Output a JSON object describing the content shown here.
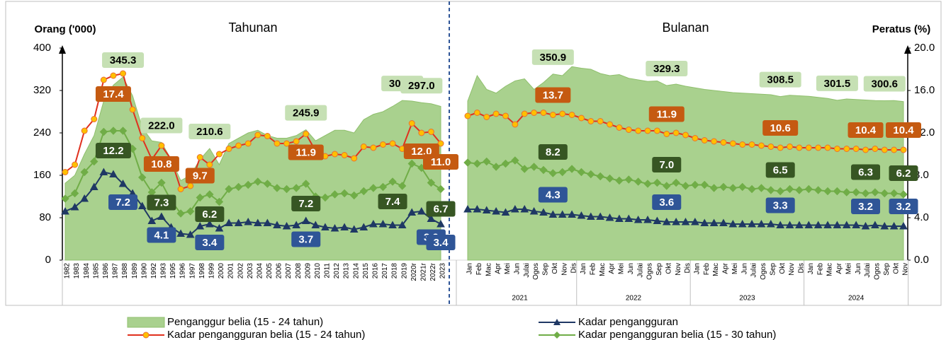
{
  "chart_data": {
    "type": "combo",
    "y_title": "Orang ('000)",
    "y2_title": "Peratus (%)",
    "ylim": [
      0,
      400
    ],
    "yticks": [
      0,
      80,
      160,
      240,
      320,
      400
    ],
    "y2lim": [
      0,
      20
    ],
    "y2ticks": [
      {
        "value": 0,
        "label": "0.0"
      },
      {
        "value": 4,
        "label": "4.0"
      },
      {
        "value": 8,
        "label": "8.0"
      },
      {
        "value": 12,
        "label": "12.0"
      },
      {
        "value": 16,
        "label": "16.0"
      },
      {
        "value": 20,
        "label": "20.0"
      }
    ],
    "legend": "bottom",
    "series": [
      {
        "name": "Penganggur belia (15 - 24 tahun)",
        "kind": "area",
        "axis": "y",
        "color": "#a9d18e",
        "line_color": "#8fbf6d",
        "label_color": "#c6e0b4",
        "label_text_color": "#000000"
      },
      {
        "name": "Kadar pengangguran",
        "kind": "line",
        "axis": "y2",
        "marker": "triangle",
        "color": "#1f3864",
        "marker_fill": "#1f3864",
        "label_color": "#2f5597",
        "label_text_color": "#ffffff"
      },
      {
        "name": "Kadar pengangguran belia (15 - 24 tahun)",
        "kind": "line",
        "axis": "y2",
        "marker": "circle",
        "color": "#e0301e",
        "marker_fill": "#ffc000",
        "label_color": "#c55a11",
        "label_text_color": "#ffffff"
      },
      {
        "name": "Kadar pengangguran belia (15 - 30 tahun)",
        "kind": "line",
        "axis": "y2",
        "marker": "diamond",
        "color": "#70ad47",
        "marker_fill": "#70ad47",
        "label_color": "#375623",
        "label_text_color": "#ffffff"
      }
    ],
    "panels": [
      {
        "title": "Tahunan",
        "categories": [
          "1982",
          "1983",
          "1984",
          "1985",
          "1986",
          "1987",
          "1988",
          "1989",
          "1990",
          "1992",
          "1993",
          "1995",
          "1996",
          "1997",
          "1998",
          "1999",
          "2000",
          "2001",
          "2002",
          "2003",
          "2004",
          "2005",
          "2006",
          "2007",
          "2008",
          "2009",
          "2010",
          "2011",
          "2012",
          "2013",
          "2014",
          "2015",
          "2016",
          "2017",
          "2018",
          "2019",
          "2020r",
          "2021r",
          "2022r",
          "2023"
        ],
        "series": [
          {
            "values": [
              145,
              160,
              200,
              235,
              300,
              330,
              345.3,
              310,
              250,
              225,
              222.0,
              190,
              150,
              160,
              190,
              210.6,
              180,
              220,
              230,
              240,
              245,
              235,
              230,
              230,
              235,
              245.9,
              225,
              235,
              245,
              245,
              240,
              265,
              275,
              280,
              290,
              301.2,
              300,
              297.0,
              295,
              290
            ],
            "value_labels": [
              null,
              null,
              null,
              null,
              null,
              null,
              "345.3",
              null,
              null,
              null,
              "222.0",
              null,
              null,
              null,
              null,
              "210.6",
              null,
              null,
              null,
              null,
              null,
              null,
              null,
              null,
              null,
              "245.9",
              null,
              null,
              null,
              null,
              null,
              null,
              null,
              null,
              null,
              "301.2",
              null,
              "297.0",
              null,
              null
            ]
          },
          {
            "values": [
              4.6,
              5.0,
              5.8,
              6.9,
              8.3,
              8.1,
              7.2,
              6.3,
              5.1,
              3.7,
              4.1,
              3.1,
              2.5,
              2.4,
              3.2,
              3.4,
              3.0,
              3.5,
              3.5,
              3.6,
              3.5,
              3.5,
              3.3,
              3.2,
              3.3,
              3.7,
              3.3,
              3.1,
              3.0,
              3.1,
              2.9,
              3.1,
              3.4,
              3.4,
              3.3,
              3.3,
              4.5,
              4.6,
              3.9,
              3.4
            ],
            "value_labels": [
              null,
              null,
              null,
              null,
              null,
              null,
              "7.2",
              null,
              null,
              null,
              "4.1",
              null,
              null,
              null,
              null,
              "3.4",
              null,
              null,
              null,
              null,
              null,
              null,
              null,
              null,
              null,
              "3.7",
              null,
              null,
              null,
              null,
              null,
              null,
              null,
              null,
              null,
              null,
              null,
              null,
              "3.9",
              "3.4"
            ]
          },
          {
            "values": [
              8.3,
              9.0,
              12.2,
              13.3,
              17.0,
              17.4,
              17.6,
              14.2,
              11.5,
              9.5,
              10.8,
              9.5,
              6.7,
              7.0,
              9.7,
              9.0,
              10.0,
              10.5,
              10.8,
              11.0,
              11.8,
              11.7,
              11.0,
              11.0,
              11.2,
              11.9,
              10.3,
              9.8,
              10.0,
              9.9,
              9.6,
              10.7,
              10.6,
              10.9,
              11.0,
              10.5,
              12.9,
              12.0,
              12.1,
              11.0
            ],
            "value_labels": [
              null,
              null,
              null,
              null,
              null,
              "17.4",
              null,
              null,
              null,
              null,
              "10.8",
              null,
              null,
              null,
              "9.7",
              null,
              null,
              null,
              null,
              null,
              null,
              null,
              null,
              null,
              null,
              "11.9",
              null,
              null,
              null,
              null,
              null,
              null,
              null,
              null,
              null,
              null,
              null,
              "12.0",
              null,
              "11.0"
            ]
          },
          {
            "values": [
              5.8,
              6.3,
              8.3,
              9.3,
              12.1,
              12.2,
              12.2,
              10.5,
              7.8,
              6.4,
              7.3,
              5.6,
              4.4,
              4.6,
              5.9,
              6.2,
              5.5,
              6.7,
              6.9,
              7.1,
              7.4,
              7.2,
              6.8,
              6.7,
              6.8,
              7.2,
              6.0,
              5.9,
              6.2,
              6.3,
              6.1,
              6.5,
              6.8,
              6.9,
              7.4,
              7.0,
              9.1,
              8.7,
              7.3,
              6.7
            ],
            "value_labels": [
              null,
              null,
              null,
              null,
              null,
              "12.2",
              null,
              null,
              null,
              null,
              "7.3",
              null,
              null,
              null,
              null,
              "6.2",
              null,
              null,
              null,
              null,
              null,
              null,
              null,
              null,
              null,
              "7.2",
              null,
              null,
              null,
              null,
              null,
              null,
              null,
              null,
              "7.4",
              null,
              null,
              null,
              null,
              "6.7"
            ]
          }
        ]
      },
      {
        "title": "Bulanan",
        "groups": [
          {
            "label": "2021",
            "categories": [
              "Jan",
              "Feb",
              "Mac",
              "Apr",
              "Mei",
              "Jun",
              "Julai",
              "Ogos",
              "Sep",
              "Okt",
              "Nov",
              "Dis"
            ]
          },
          {
            "label": "2022",
            "categories": [
              "Jan",
              "Feb",
              "Mac",
              "Apr",
              "Mei",
              "Jun",
              "Julai",
              "Ogos",
              "Sep",
              "Okt",
              "Nov",
              "Dis"
            ]
          },
          {
            "label": "2023",
            "categories": [
              "Jan",
              "Feb",
              "Mac",
              "Apr",
              "Mei",
              "Jun",
              "Julai",
              "Ogos",
              "Sep",
              "Okt",
              "Nov",
              "Dis"
            ]
          },
          {
            "label": "2024",
            "categories": [
              "Jan",
              "Feb",
              "Mac",
              "Apr",
              "Mei",
              "Jun",
              "Julai",
              "Ogos",
              "Sep",
              "Okt",
              "Nov"
            ]
          }
        ],
        "series": [
          {
            "values": [
              300,
              348,
              322,
              315,
              328,
              338,
              342,
              322,
              335,
              350.9,
              348,
              365,
              362,
              360,
              352,
              348,
              350,
              343,
              340,
              337,
              338,
              329.3,
              332,
              328,
              325,
              322,
              320,
              318,
              316,
              315,
              314,
              313,
              312,
              308.5,
              311,
              310,
              309,
              307,
              305,
              301.5,
              304,
              303,
              302,
              301,
              300.6,
              301,
              299
            ],
            "value_labels": [
              null,
              null,
              null,
              null,
              null,
              null,
              null,
              null,
              null,
              "350.9",
              null,
              null,
              null,
              null,
              null,
              null,
              null,
              null,
              null,
              null,
              null,
              "329.3",
              null,
              null,
              null,
              null,
              null,
              null,
              null,
              null,
              null,
              null,
              null,
              "308.5",
              null,
              null,
              null,
              null,
              null,
              "301.5",
              null,
              null,
              null,
              null,
              "300.6",
              null,
              null
            ]
          },
          {
            "values": [
              4.8,
              4.8,
              4.7,
              4.6,
              4.5,
              4.8,
              4.8,
              4.6,
              4.5,
              4.3,
              4.3,
              4.3,
              4.2,
              4.1,
              4.1,
              4.0,
              3.9,
              3.9,
              3.8,
              3.8,
              3.7,
              3.6,
              3.6,
              3.6,
              3.6,
              3.5,
              3.5,
              3.5,
              3.4,
              3.4,
              3.4,
              3.4,
              3.4,
              3.3,
              3.3,
              3.3,
              3.3,
              3.3,
              3.3,
              3.3,
              3.3,
              3.3,
              3.2,
              3.3,
              3.2,
              3.2,
              3.2
            ],
            "value_labels": [
              null,
              null,
              null,
              null,
              null,
              null,
              null,
              null,
              null,
              "4.3",
              null,
              null,
              null,
              null,
              null,
              null,
              null,
              null,
              null,
              null,
              null,
              "3.6",
              null,
              null,
              null,
              null,
              null,
              null,
              null,
              null,
              null,
              null,
              null,
              "3.3",
              null,
              null,
              null,
              null,
              null,
              null,
              null,
              null,
              "3.2",
              null,
              null,
              null,
              "3.2"
            ]
          },
          {
            "values": [
              13.6,
              13.9,
              13.5,
              13.8,
              13.6,
              12.8,
              13.8,
              13.9,
              13.9,
              13.7,
              13.8,
              13.7,
              13.4,
              13.1,
              13.1,
              12.8,
              12.5,
              12.3,
              12.2,
              12.2,
              12.2,
              11.9,
              12.0,
              11.8,
              11.5,
              11.3,
              11.2,
              11.1,
              11.0,
              10.9,
              10.9,
              10.8,
              10.7,
              10.6,
              10.7,
              10.6,
              10.6,
              10.6,
              10.6,
              10.5,
              10.5,
              10.5,
              10.4,
              10.5,
              10.4,
              10.4,
              10.4
            ],
            "value_labels": [
              null,
              null,
              null,
              null,
              null,
              null,
              null,
              null,
              null,
              "13.7",
              null,
              null,
              null,
              null,
              null,
              null,
              null,
              null,
              null,
              null,
              null,
              "11.9",
              null,
              null,
              null,
              null,
              null,
              null,
              null,
              null,
              null,
              null,
              null,
              "10.6",
              null,
              null,
              null,
              null,
              null,
              null,
              null,
              null,
              "10.4",
              null,
              null,
              null,
              "10.4"
            ]
          },
          {
            "values": [
              9.2,
              9.1,
              9.3,
              8.8,
              9.1,
              9.4,
              8.6,
              8.8,
              8.5,
              8.2,
              8.3,
              8.6,
              8.3,
              8.1,
              7.9,
              7.7,
              7.5,
              7.6,
              7.4,
              7.2,
              7.3,
              7.0,
              7.3,
              7.0,
              7.1,
              7.1,
              6.8,
              6.9,
              6.8,
              6.9,
              6.7,
              6.8,
              6.6,
              6.5,
              6.7,
              6.6,
              6.7,
              6.6,
              6.5,
              6.5,
              6.4,
              6.4,
              6.3,
              6.4,
              6.3,
              6.3,
              6.2
            ],
            "value_labels": [
              null,
              null,
              null,
              null,
              null,
              null,
              null,
              null,
              null,
              "8.2",
              null,
              null,
              null,
              null,
              null,
              null,
              null,
              null,
              null,
              null,
              null,
              "7.0",
              null,
              null,
              null,
              null,
              null,
              null,
              null,
              null,
              null,
              null,
              null,
              "6.5",
              null,
              null,
              null,
              null,
              null,
              null,
              null,
              null,
              "6.3",
              null,
              null,
              null,
              "6.2"
            ]
          }
        ]
      }
    ]
  }
}
